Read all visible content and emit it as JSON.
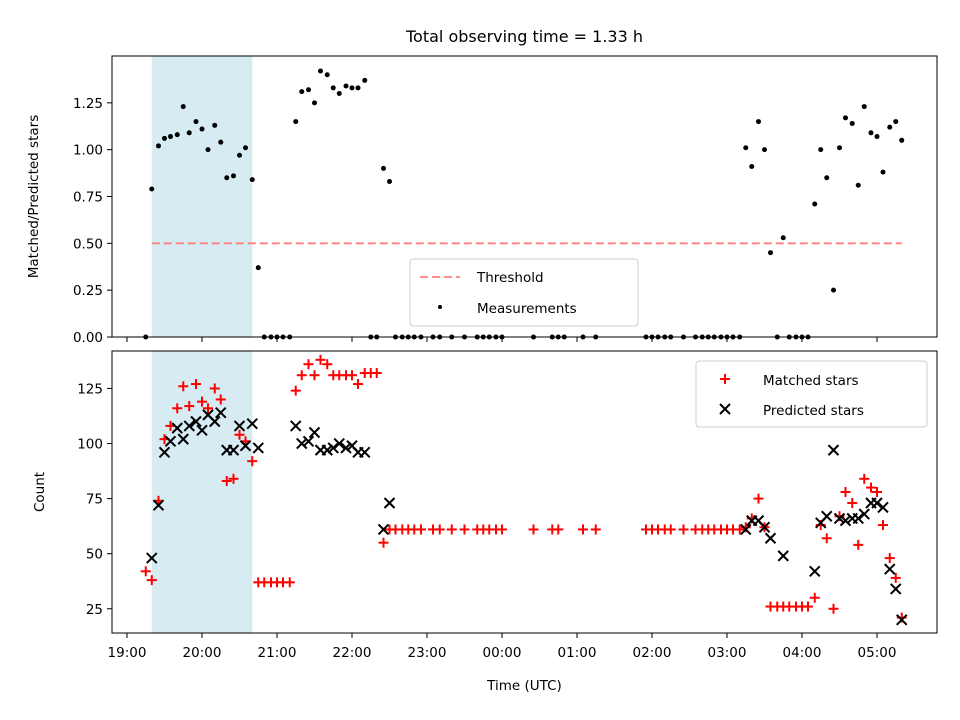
{
  "chart_data": [
    {
      "type": "scatter",
      "title": "Total observing time = 1.33 h",
      "xlabel": "",
      "ylabel": "Matched/Predicted stars",
      "ylim": [
        0,
        1.5
      ],
      "yticks": [
        "0.00",
        "0.25",
        "0.50",
        "0.75",
        "1.00",
        "1.25"
      ],
      "threshold": {
        "name": "Threshold",
        "value": 0.5,
        "x_range": [
          19.33,
          5.33
        ],
        "color": "#ff7f7f"
      },
      "highlight": {
        "from": 19.33,
        "to": 20.67,
        "color": "#add8e6"
      },
      "legend": {
        "placement": "lower-center"
      },
      "series": [
        {
          "name": "Measurements",
          "color": "#000000",
          "points": [
            [
              19.25,
              0.0
            ],
            [
              19.33,
              0.79
            ],
            [
              19.42,
              1.02
            ],
            [
              19.5,
              1.06
            ],
            [
              19.58,
              1.07
            ],
            [
              19.67,
              1.08
            ],
            [
              19.75,
              1.23
            ],
            [
              19.83,
              1.09
            ],
            [
              19.92,
              1.15
            ],
            [
              20.0,
              1.11
            ],
            [
              20.08,
              1.0
            ],
            [
              20.17,
              1.13
            ],
            [
              20.25,
              1.04
            ],
            [
              20.33,
              0.85
            ],
            [
              20.42,
              0.86
            ],
            [
              20.5,
              0.97
            ],
            [
              20.58,
              1.01
            ],
            [
              20.67,
              0.84
            ],
            [
              20.75,
              0.37
            ],
            [
              20.83,
              0.0
            ],
            [
              20.92,
              0.0
            ],
            [
              21.0,
              0.0
            ],
            [
              21.08,
              0.0
            ],
            [
              21.17,
              0.0
            ],
            [
              21.25,
              1.15
            ],
            [
              21.33,
              1.31
            ],
            [
              21.42,
              1.32
            ],
            [
              21.5,
              1.25
            ],
            [
              21.58,
              1.42
            ],
            [
              21.67,
              1.4
            ],
            [
              21.75,
              1.33
            ],
            [
              21.83,
              1.3
            ],
            [
              21.92,
              1.34
            ],
            [
              22.0,
              1.33
            ],
            [
              22.08,
              1.33
            ],
            [
              22.17,
              1.37
            ],
            [
              22.25,
              0.0
            ],
            [
              22.33,
              0.0
            ],
            [
              22.42,
              0.9
            ],
            [
              22.5,
              0.83
            ],
            [
              22.58,
              0.0
            ],
            [
              22.67,
              0.0
            ],
            [
              22.75,
              0.0
            ],
            [
              22.83,
              0.0
            ],
            [
              22.92,
              0.0
            ],
            [
              23.08,
              0.0
            ],
            [
              23.17,
              0.0
            ],
            [
              23.33,
              0.0
            ],
            [
              23.5,
              0.0
            ],
            [
              23.67,
              0.0
            ],
            [
              23.75,
              0.0
            ],
            [
              23.83,
              0.0
            ],
            [
              23.92,
              0.0
            ],
            [
              24.0,
              0.0
            ],
            [
              24.42,
              0.0
            ],
            [
              24.67,
              0.0
            ],
            [
              24.75,
              0.0
            ],
            [
              24.83,
              0.0
            ],
            [
              25.08,
              0.0
            ],
            [
              25.25,
              0.0
            ],
            [
              25.92,
              0.0
            ],
            [
              26.0,
              0.0
            ],
            [
              26.08,
              0.0
            ],
            [
              26.17,
              0.0
            ],
            [
              26.25,
              0.0
            ],
            [
              26.42,
              0.0
            ],
            [
              26.58,
              0.0
            ],
            [
              26.67,
              0.0
            ],
            [
              26.75,
              0.0
            ],
            [
              26.83,
              0.0
            ],
            [
              26.92,
              0.0
            ],
            [
              27.0,
              0.0
            ],
            [
              27.08,
              0.0
            ],
            [
              27.17,
              0.0
            ],
            [
              27.25,
              1.01
            ],
            [
              27.33,
              0.91
            ],
            [
              27.42,
              1.15
            ],
            [
              27.5,
              1.0
            ],
            [
              27.58,
              0.45
            ],
            [
              27.75,
              0.53
            ],
            [
              27.67,
              0.0
            ],
            [
              27.83,
              0.0
            ],
            [
              27.92,
              0.0
            ],
            [
              28.0,
              0.0
            ],
            [
              28.08,
              0.0
            ],
            [
              28.17,
              0.71
            ],
            [
              28.25,
              1.0
            ],
            [
              28.33,
              0.85
            ],
            [
              28.42,
              0.25
            ],
            [
              28.5,
              1.01
            ],
            [
              28.58,
              1.17
            ],
            [
              28.67,
              1.14
            ],
            [
              28.75,
              0.81
            ],
            [
              28.83,
              1.23
            ],
            [
              28.92,
              1.09
            ],
            [
              29.0,
              1.07
            ],
            [
              29.08,
              0.88
            ],
            [
              29.17,
              1.12
            ],
            [
              29.25,
              1.15
            ],
            [
              29.33,
              1.05
            ]
          ]
        }
      ]
    },
    {
      "type": "scatter",
      "xlabel": "Time (UTC)",
      "ylabel": "Count",
      "xticks": [
        "19:00",
        "20:00",
        "21:00",
        "22:00",
        "23:00",
        "00:00",
        "01:00",
        "02:00",
        "03:00",
        "04:00",
        "05:00"
      ],
      "yticks": [
        "25",
        "50",
        "75",
        "100",
        "125"
      ],
      "ylim": [
        14,
        142
      ],
      "legend": {
        "placement": "upper-right"
      },
      "series": [
        {
          "name": "Matched stars",
          "color": "#ff0000",
          "marker": "plus",
          "points": [
            [
              19.25,
              42
            ],
            [
              19.33,
              38
            ],
            [
              19.42,
              74
            ],
            [
              19.5,
              102
            ],
            [
              19.58,
              108
            ],
            [
              19.67,
              116
            ],
            [
              19.75,
              126
            ],
            [
              19.83,
              117
            ],
            [
              19.92,
              127
            ],
            [
              20.0,
              119
            ],
            [
              20.08,
              116
            ],
            [
              20.17,
              125
            ],
            [
              20.25,
              120
            ],
            [
              20.33,
              83
            ],
            [
              20.42,
              84
            ],
            [
              20.5,
              104
            ],
            [
              20.58,
              101
            ],
            [
              20.67,
              92
            ],
            [
              20.75,
              37
            ],
            [
              20.83,
              37
            ],
            [
              20.92,
              37
            ],
            [
              21.0,
              37
            ],
            [
              21.08,
              37
            ],
            [
              21.17,
              37
            ],
            [
              21.25,
              124
            ],
            [
              21.33,
              131
            ],
            [
              21.42,
              136
            ],
            [
              21.5,
              131
            ],
            [
              21.58,
              138
            ],
            [
              21.67,
              136
            ],
            [
              21.75,
              131
            ],
            [
              21.83,
              131
            ],
            [
              21.92,
              131
            ],
            [
              22.0,
              131
            ],
            [
              22.08,
              127
            ],
            [
              22.17,
              132
            ],
            [
              22.25,
              132
            ],
            [
              22.33,
              132
            ],
            [
              22.42,
              55
            ],
            [
              22.5,
              61
            ],
            [
              22.58,
              61
            ],
            [
              22.67,
              61
            ],
            [
              22.75,
              61
            ],
            [
              22.83,
              61
            ],
            [
              22.92,
              61
            ],
            [
              23.08,
              61
            ],
            [
              23.17,
              61
            ],
            [
              23.33,
              61
            ],
            [
              23.5,
              61
            ],
            [
              23.67,
              61
            ],
            [
              23.75,
              61
            ],
            [
              23.83,
              61
            ],
            [
              23.92,
              61
            ],
            [
              24.0,
              61
            ],
            [
              24.42,
              61
            ],
            [
              24.67,
              61
            ],
            [
              24.75,
              61
            ],
            [
              25.08,
              61
            ],
            [
              25.25,
              61
            ],
            [
              25.92,
              61
            ],
            [
              26.0,
              61
            ],
            [
              26.08,
              61
            ],
            [
              26.17,
              61
            ],
            [
              26.25,
              61
            ],
            [
              26.42,
              61
            ],
            [
              26.58,
              61
            ],
            [
              26.67,
              61
            ],
            [
              26.75,
              61
            ],
            [
              26.83,
              61
            ],
            [
              26.92,
              61
            ],
            [
              27.0,
              61
            ],
            [
              27.08,
              61
            ],
            [
              27.17,
              61
            ],
            [
              27.25,
              62
            ],
            [
              27.33,
              66
            ],
            [
              27.42,
              75
            ],
            [
              27.5,
              62
            ],
            [
              27.58,
              26
            ],
            [
              27.67,
              26
            ],
            [
              27.75,
              26
            ],
            [
              27.83,
              26
            ],
            [
              27.92,
              26
            ],
            [
              28.0,
              26
            ],
            [
              28.08,
              26
            ],
            [
              28.17,
              30
            ],
            [
              28.25,
              63
            ],
            [
              28.33,
              57
            ],
            [
              28.42,
              25
            ],
            [
              28.5,
              67
            ],
            [
              28.58,
              78
            ],
            [
              28.67,
              73
            ],
            [
              28.75,
              54
            ],
            [
              28.83,
              84
            ],
            [
              28.92,
              80
            ],
            [
              29.0,
              78
            ],
            [
              29.08,
              63
            ],
            [
              29.17,
              48
            ],
            [
              29.25,
              39
            ],
            [
              29.33,
              21
            ]
          ]
        },
        {
          "name": "Predicted stars",
          "color": "#000000",
          "marker": "x",
          "points": [
            [
              19.33,
              48
            ],
            [
              19.42,
              72
            ],
            [
              19.5,
              96
            ],
            [
              19.58,
              101
            ],
            [
              19.67,
              107
            ],
            [
              19.75,
              102
            ],
            [
              19.83,
              108
            ],
            [
              19.92,
              110
            ],
            [
              20.0,
              106
            ],
            [
              20.08,
              113
            ],
            [
              20.17,
              110
            ],
            [
              20.25,
              114
            ],
            [
              20.33,
              97
            ],
            [
              20.42,
              97
            ],
            [
              20.5,
              108
            ],
            [
              20.58,
              99
            ],
            [
              20.67,
              109
            ],
            [
              20.75,
              98
            ],
            [
              21.25,
              108
            ],
            [
              21.33,
              100
            ],
            [
              21.42,
              101
            ],
            [
              21.5,
              105
            ],
            [
              21.58,
              97
            ],
            [
              21.67,
              97
            ],
            [
              21.75,
              98
            ],
            [
              21.83,
              100
            ],
            [
              21.92,
              98
            ],
            [
              22.0,
              99
            ],
            [
              22.08,
              96
            ],
            [
              22.17,
              96
            ],
            [
              22.42,
              61
            ],
            [
              22.5,
              73
            ],
            [
              27.25,
              61
            ],
            [
              27.33,
              65
            ],
            [
              27.42,
              65
            ],
            [
              27.5,
              62
            ],
            [
              27.58,
              57
            ],
            [
              27.75,
              49
            ],
            [
              28.17,
              42
            ],
            [
              28.25,
              64
            ],
            [
              28.33,
              67
            ],
            [
              28.42,
              97
            ],
            [
              28.5,
              66
            ],
            [
              28.58,
              65
            ],
            [
              28.67,
              66
            ],
            [
              28.75,
              66
            ],
            [
              28.83,
              68
            ],
            [
              28.92,
              73
            ],
            [
              29.0,
              73
            ],
            [
              29.08,
              71
            ],
            [
              29.17,
              43
            ],
            [
              29.25,
              34
            ],
            [
              29.33,
              20
            ]
          ]
        }
      ]
    }
  ]
}
